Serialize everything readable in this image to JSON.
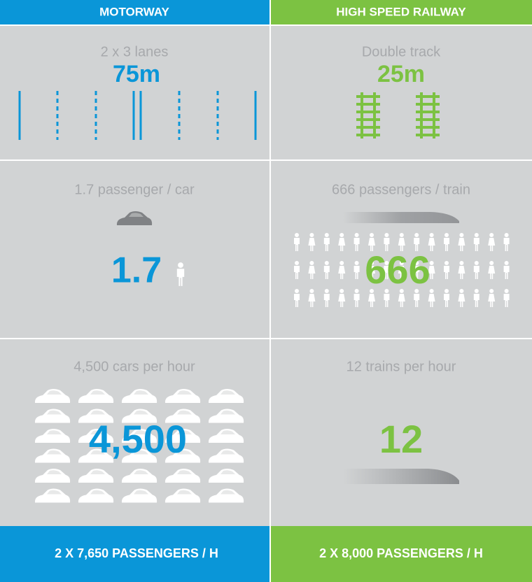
{
  "columns": [
    {
      "header": "MOTORWAY",
      "width_label": "2 x 3 lanes",
      "width_value": "75m",
      "occupancy_label": "1.7 passenger / car",
      "occupancy_value": "1.7",
      "flow_label": "4,500 cars per hour",
      "flow_value": "4,500",
      "footer": "2 X 7,650 PASSENGERS / H"
    },
    {
      "header": "HIGH SPEED RAILWAY",
      "width_label": "Double track",
      "width_value": "25m",
      "occupancy_label": "666 passengers / train",
      "occupancy_value": "666",
      "flow_label": "12 trains per hour",
      "flow_value": "12",
      "footer": "2 X 8,000 PASSENGERS / H"
    }
  ]
}
